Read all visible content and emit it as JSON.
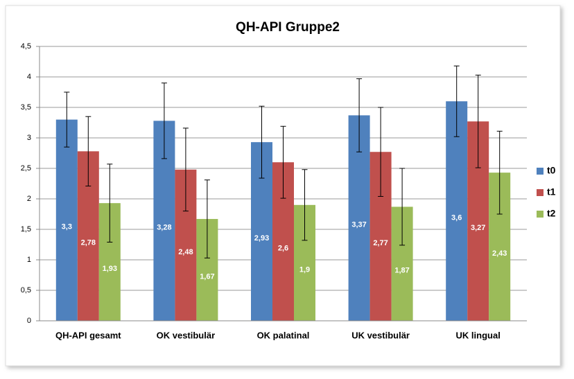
{
  "chart_data": {
    "type": "bar",
    "title": "QH-API Gruppe2",
    "categories": [
      "QH-API gesamt",
      "OK vestibulär",
      "OK palatinal",
      "UK vestibulär",
      "UK lingual"
    ],
    "series": [
      {
        "name": "t0",
        "color": "#4f81bd",
        "values": [
          3.3,
          3.28,
          2.93,
          3.37,
          3.6
        ],
        "value_labels": [
          "3,3",
          "3,28",
          "2,93",
          "3,37",
          "3,6"
        ],
        "errors": [
          0.45,
          0.62,
          0.59,
          0.6,
          0.58
        ]
      },
      {
        "name": "t1",
        "color": "#c0504d",
        "values": [
          2.78,
          2.48,
          2.6,
          2.77,
          3.27
        ],
        "value_labels": [
          "2,78",
          "2,48",
          "2,6",
          "2,77",
          "3,27"
        ],
        "errors": [
          0.57,
          0.68,
          0.59,
          0.73,
          0.76
        ]
      },
      {
        "name": "t2",
        "color": "#9bbb59",
        "values": [
          1.93,
          1.67,
          1.9,
          1.87,
          2.43
        ],
        "value_labels": [
          "1,93",
          "1,67",
          "1,9",
          "1,87",
          "2,43"
        ],
        "errors": [
          0.64,
          0.64,
          0.58,
          0.63,
          0.68
        ]
      }
    ],
    "ylim": [
      0,
      4.5
    ],
    "yticks": [
      0,
      {
        "value": 0.5,
        "label": "0,5"
      },
      1,
      {
        "value": 1.5,
        "label": "1,5"
      },
      2,
      {
        "value": 2.5,
        "label": "2,5"
      },
      3,
      {
        "value": 3.5,
        "label": "3,5"
      },
      4,
      {
        "value": 4.5,
        "label": "4,5"
      }
    ],
    "grid": true,
    "legend": "right"
  }
}
